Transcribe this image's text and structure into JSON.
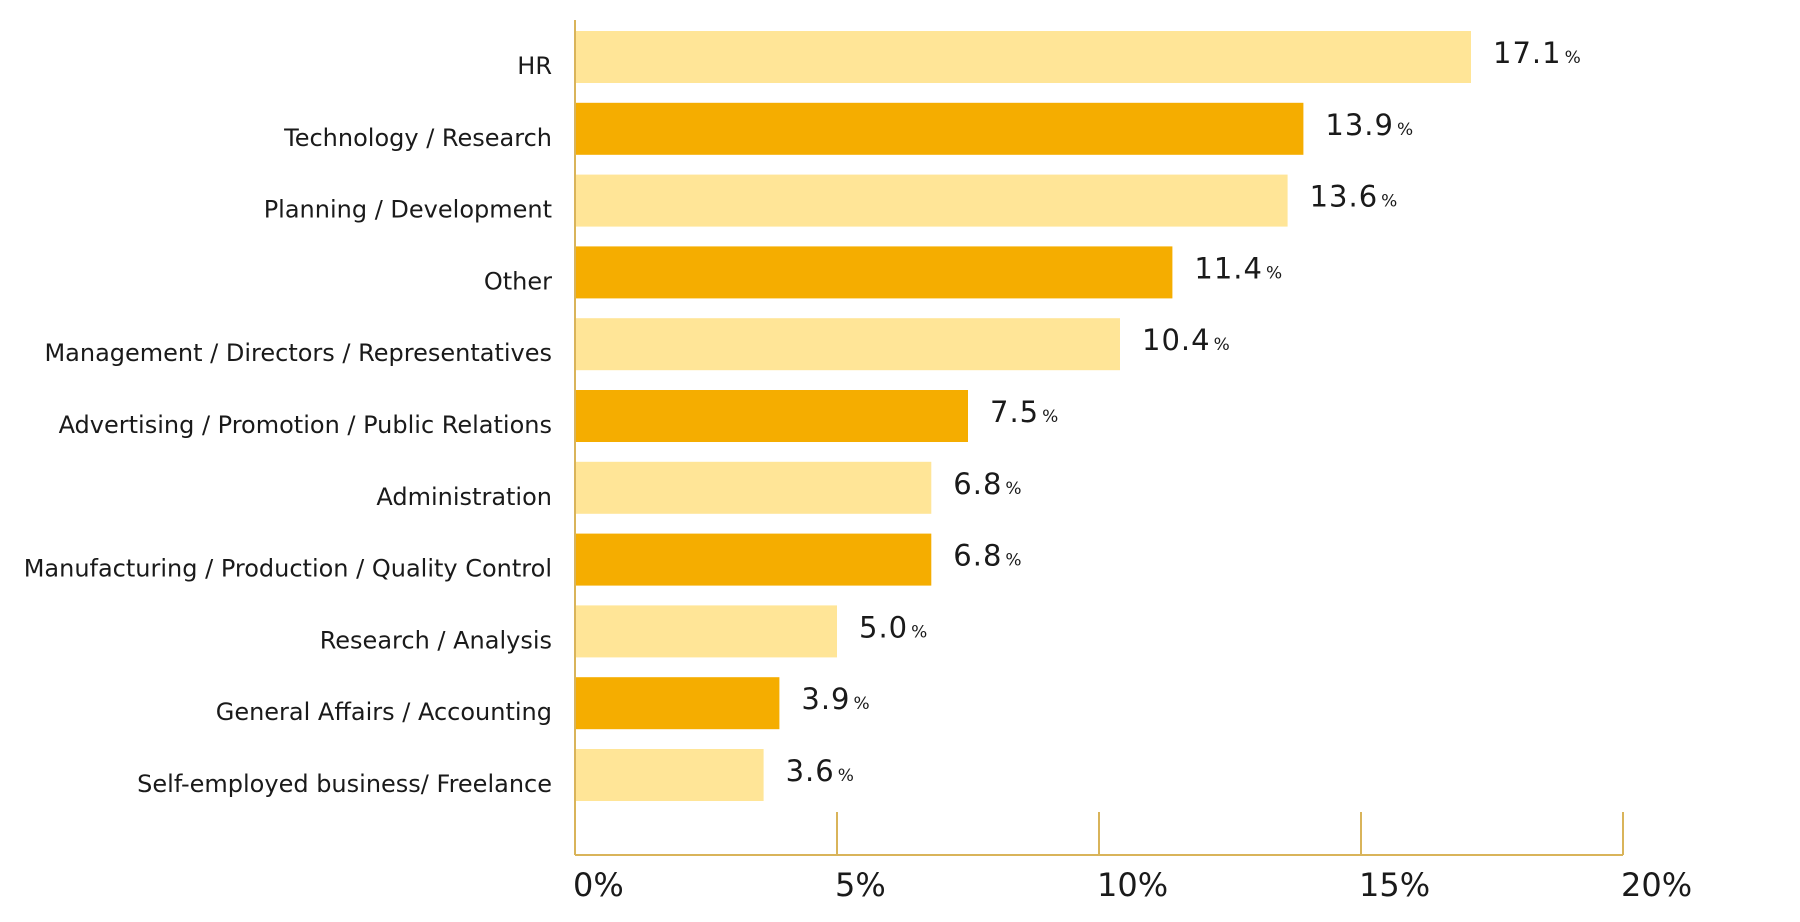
{
  "chart_data": {
    "type": "bar",
    "orientation": "horizontal",
    "categories": [
      "HR",
      "Technology / Research",
      "Planning / Development",
      "Other",
      "Management / Directors / Representatives",
      "Advertising / Promotion / Public Relations",
      "Administration",
      "Manufacturing / Production / Quality Control",
      "Research / Analysis",
      "General Affairs / Accounting",
      "Self-employed business/ Freelance"
    ],
    "values": [
      17.1,
      13.9,
      13.6,
      11.4,
      10.4,
      7.5,
      6.8,
      6.8,
      5.0,
      3.9,
      3.6
    ],
    "value_labels": [
      "17.1",
      "13.9",
      "13.6",
      "11.4",
      "10.4",
      "7.5",
      "6.8",
      "6.8",
      "5.0",
      "3.9",
      "3.6"
    ],
    "value_unit": "%",
    "xlim": [
      0,
      20
    ],
    "xticks": [
      0,
      5,
      10,
      15,
      20
    ],
    "xtick_labels": [
      "0%",
      "5%",
      "10%",
      "15%",
      "20%"
    ],
    "grid": false,
    "legend": "none",
    "colors": {
      "light": "#FFE597",
      "dark": "#F5AD00",
      "axis": "#D9B45A"
    },
    "bar_color_pattern": [
      "light",
      "dark"
    ]
  }
}
